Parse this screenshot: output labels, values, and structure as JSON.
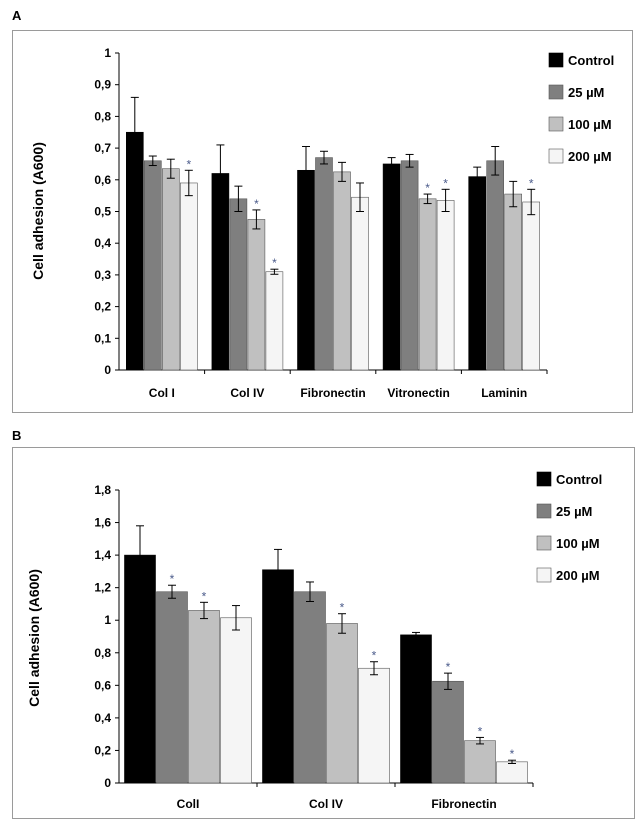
{
  "figure": {
    "panel_a_letter": "A",
    "panel_b_letter": "B"
  },
  "chart_data": [
    {
      "type": "bar",
      "panel": "A",
      "title": "",
      "ylabel": "Cell adhesion (A600)",
      "xlabel": "",
      "ylim": [
        0,
        1
      ],
      "yticks": [
        "0",
        "0,1",
        "0,2",
        "0,3",
        "0,4",
        "0,5",
        "0,6",
        "0,7",
        "0,8",
        "0,9",
        "1"
      ],
      "categories": [
        "Col I",
        "Col IV",
        "Fibronectin",
        "Vitronectin",
        "Laminin"
      ],
      "legend_position": "right",
      "grid": false,
      "series": [
        {
          "name": "Control",
          "color": "#000000",
          "values": [
            0.75,
            0.62,
            0.63,
            0.65,
            0.61
          ],
          "errors": [
            0.11,
            0.09,
            0.075,
            0.02,
            0.03
          ],
          "significant": [
            false,
            false,
            false,
            false,
            false
          ]
        },
        {
          "name": "25 µM",
          "color": "#7f7f7f",
          "values": [
            0.66,
            0.54,
            0.67,
            0.66,
            0.66
          ],
          "errors": [
            0.015,
            0.04,
            0.02,
            0.02,
            0.045
          ],
          "significant": [
            false,
            false,
            false,
            false,
            false
          ]
        },
        {
          "name": "100 µM",
          "color": "#c0c0c0",
          "values": [
            0.635,
            0.475,
            0.625,
            0.54,
            0.555
          ],
          "errors": [
            0.03,
            0.03,
            0.03,
            0.015,
            0.04
          ],
          "significant": [
            false,
            true,
            false,
            true,
            false
          ]
        },
        {
          "name": "200 µM",
          "color": "#f5f5f5",
          "values": [
            0.59,
            0.31,
            0.545,
            0.535,
            0.53
          ],
          "errors": [
            0.04,
            0.008,
            0.045,
            0.035,
            0.04
          ],
          "significant": [
            true,
            true,
            false,
            true,
            true
          ]
        }
      ]
    },
    {
      "type": "bar",
      "panel": "B",
      "title": "",
      "ylabel": "Cell adhesion (A600)",
      "xlabel": "",
      "ylim": [
        0,
        1.8
      ],
      "yticks": [
        "0",
        "0,2",
        "0,4",
        "0,6",
        "0,8",
        "1",
        "1,2",
        "1,4",
        "1,6",
        "1,8"
      ],
      "categories": [
        "ColI",
        "Col IV",
        "Fibronectin"
      ],
      "legend_position": "right",
      "grid": false,
      "series": [
        {
          "name": "Control",
          "color": "#000000",
          "values": [
            1.4,
            1.31,
            0.91
          ],
          "errors": [
            0.18,
            0.125,
            0.015
          ],
          "significant": [
            false,
            false,
            false
          ]
        },
        {
          "name": "25 µM",
          "color": "#7f7f7f",
          "values": [
            1.175,
            1.175,
            0.625
          ],
          "errors": [
            0.04,
            0.06,
            0.05
          ],
          "significant": [
            true,
            false,
            true
          ]
        },
        {
          "name": "100 µM",
          "color": "#c0c0c0",
          "values": [
            1.06,
            0.98,
            0.26
          ],
          "errors": [
            0.05,
            0.06,
            0.02
          ],
          "significant": [
            true,
            true,
            true
          ]
        },
        {
          "name": "200 µM",
          "color": "#f5f5f5",
          "values": [
            1.015,
            0.705,
            0.13
          ],
          "errors": [
            0.075,
            0.04,
            0.01
          ],
          "significant": [
            false,
            true,
            true
          ]
        }
      ]
    }
  ]
}
